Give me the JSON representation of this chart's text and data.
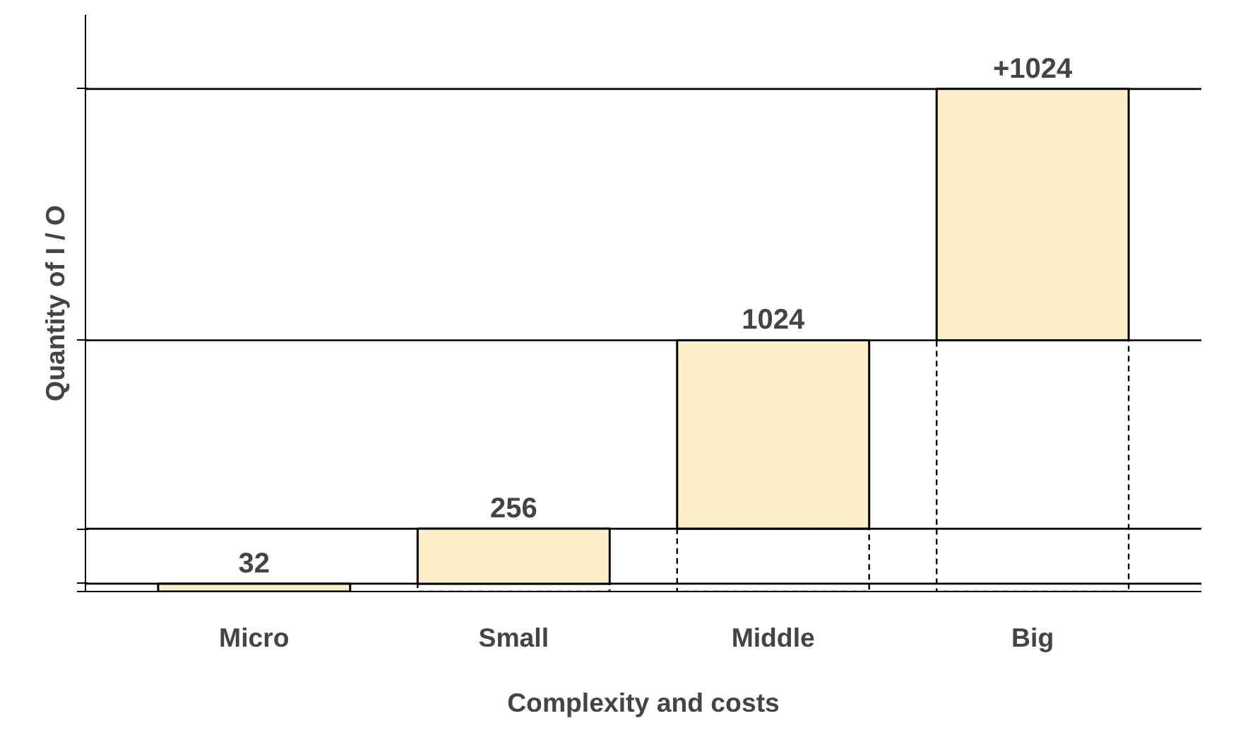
{
  "chart_data": {
    "type": "bar",
    "stacked": true,
    "categories": [
      "Micro",
      "Small",
      "Middle",
      "Big"
    ],
    "series": [
      {
        "color": "#000000",
        "line_style": "dashed",
        "values": [
          0,
          32,
          256,
          1024
        ]
      },
      {
        "color": "#fdf0c8",
        "line_style": "solid",
        "values": [
          32,
          224,
          768,
          1024
        ],
        "value_labels": [
          null,
          null,
          null,
          "+1024"
        ]
      }
    ],
    "totals": [
      "32",
      "256",
      "1024",
      null
    ],
    "ylim": [
      0,
      2350
    ],
    "tick_labels": "x",
    "ref_lines": [
      {
        "axis": "y",
        "value": 32,
        "color": "#000000",
        "line_style": "solid"
      },
      {
        "axis": "y",
        "value": 256,
        "color": "#000000",
        "line_style": "solid"
      },
      {
        "axis": "y",
        "value": 1024,
        "color": "#000000",
        "line_style": "solid"
      },
      {
        "axis": "y",
        "value": 2048,
        "color": "#000000",
        "line_style": "solid"
      }
    ],
    "xlabel": "Complexity and costs",
    "ylabel": "Quantity of I / O"
  }
}
